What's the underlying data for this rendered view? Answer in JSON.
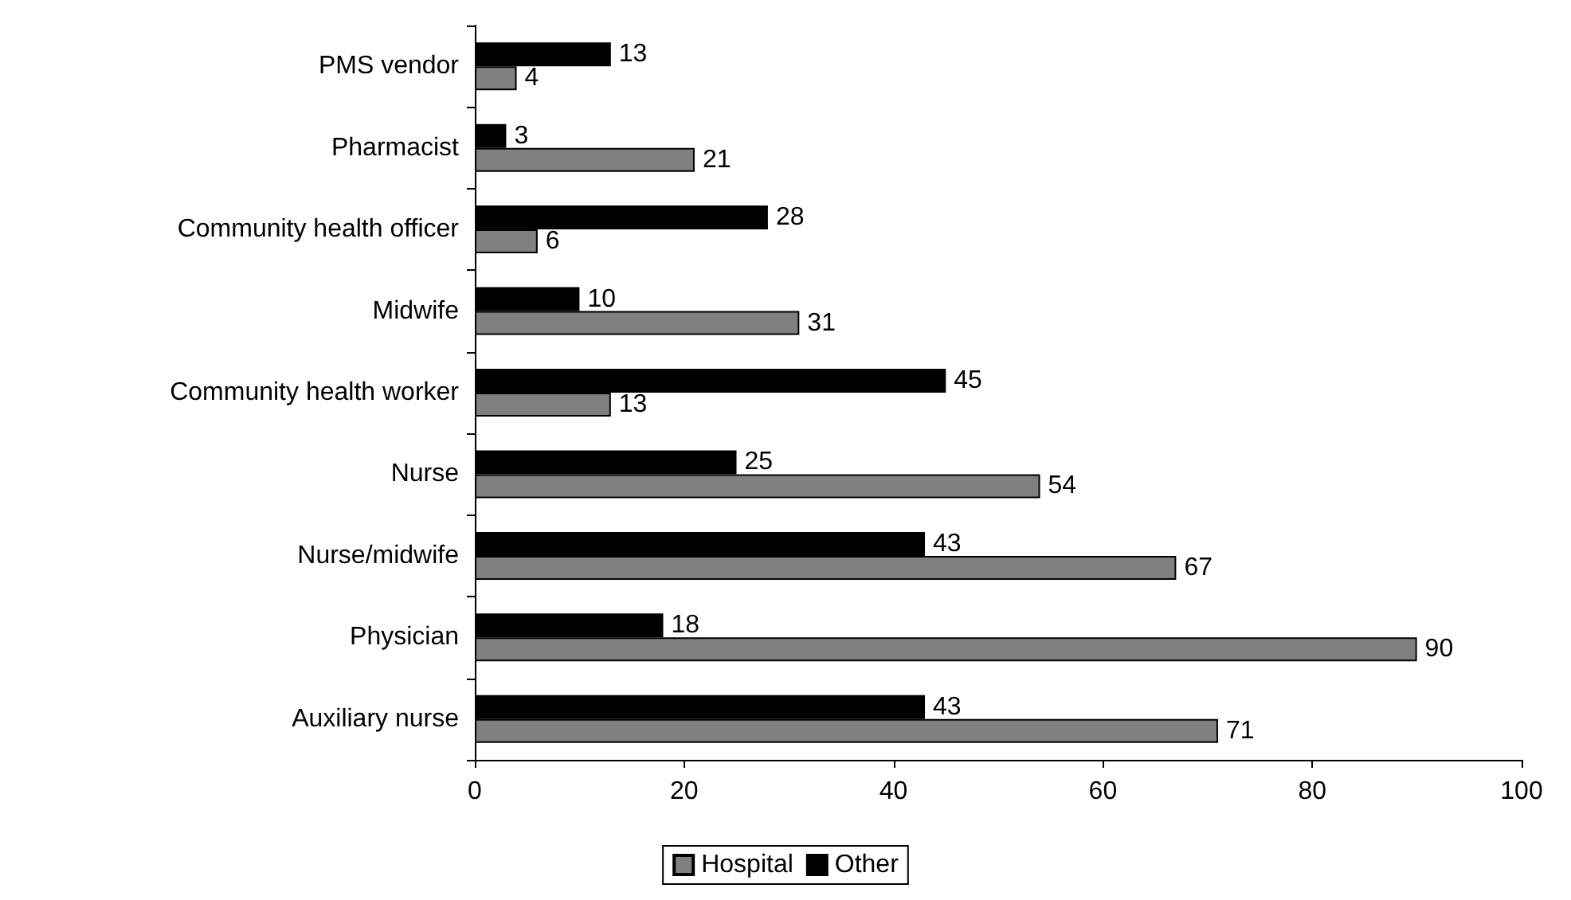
{
  "chart_data": {
    "type": "bar",
    "orientation": "horizontal",
    "categories": [
      "PMS vendor",
      "Pharmacist",
      "Community health officer",
      "Midwife",
      "Community health worker",
      "Nurse",
      "Nurse/midwife",
      "Physician",
      "Auxiliary nurse"
    ],
    "series": [
      {
        "name": "Hospital",
        "color": "#808080",
        "values": [
          4,
          21,
          6,
          31,
          13,
          54,
          67,
          90,
          71
        ]
      },
      {
        "name": "Other",
        "color": "#000000",
        "values": [
          13,
          3,
          28,
          10,
          45,
          25,
          43,
          18,
          43
        ]
      }
    ],
    "xlim": [
      0,
      100
    ],
    "xticks": [
      0,
      20,
      40,
      60,
      80,
      100
    ],
    "data_labels": true,
    "grid": false,
    "legend": "bottom"
  }
}
